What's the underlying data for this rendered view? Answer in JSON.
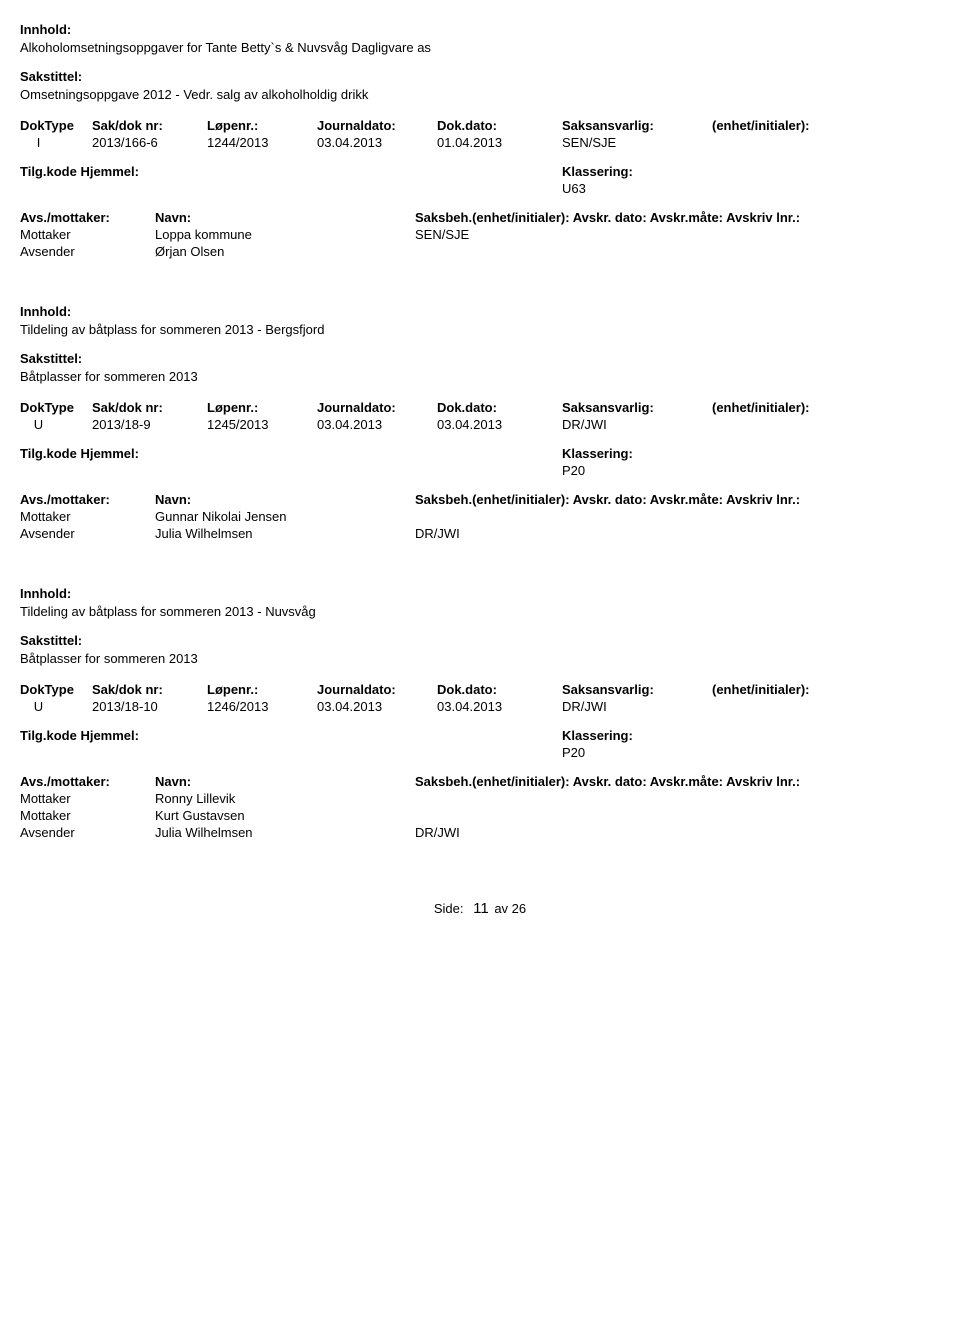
{
  "labels": {
    "innhold": "Innhold:",
    "sakstittel": "Sakstittel:",
    "doktype": "DokType",
    "saknr": "Sak/dok nr:",
    "lopenr": "Løpenr.:",
    "journaldato": "Journaldato:",
    "dokdato": "Dok.dato:",
    "saksansvarlig": "Saksansvarlig:",
    "enhet": "(enhet/initialer):",
    "tilgkode": "Tilg.kode",
    "hjemmel": "Hjemmel:",
    "klassering": "Klassering:",
    "avsmottaker": "Avs./mottaker:",
    "navn": "Navn:",
    "saksbeh_line": "Saksbeh.(enhet/initialer): Avskr. dato:  Avskr.måte:  Avskriv lnr.:",
    "mottaker": "Mottaker",
    "avsender": "Avsender",
    "side": "Side:",
    "page_num": "11",
    "page_rest": "av  26"
  },
  "records": [
    {
      "innhold": "Alkoholomsetningsoppgaver for Tante Betty`s & Nuvsvåg Dagligvare as",
      "sakstittel": "Omsetningsoppgave 2012 - Vedr. salg  av alkoholholdig drikk",
      "doktype": "I",
      "saknr": "2013/166-6",
      "lopenr": "1244/2013",
      "journaldato": "03.04.2013",
      "dokdato": "01.04.2013",
      "saksansvarlig": "SEN/SJE",
      "klassering": "U63",
      "parties": [
        {
          "role": "Mottaker",
          "name": "Loppa kommune",
          "saksbeh": "SEN/SJE"
        },
        {
          "role": "Avsender",
          "name": "Ørjan Olsen",
          "saksbeh": ""
        }
      ]
    },
    {
      "innhold": "Tildeling av båtplass for sommeren 2013 - Bergsfjord",
      "sakstittel": "Båtplasser for sommeren 2013",
      "doktype": "U",
      "saknr": "2013/18-9",
      "lopenr": "1245/2013",
      "journaldato": "03.04.2013",
      "dokdato": "03.04.2013",
      "saksansvarlig": "DR/JWI",
      "klassering": "P20",
      "parties": [
        {
          "role": "Mottaker",
          "name": "Gunnar Nikolai Jensen",
          "saksbeh": ""
        },
        {
          "role": "Avsender",
          "name": "Julia Wilhelmsen",
          "saksbeh": "DR/JWI"
        }
      ]
    },
    {
      "innhold": "Tildeling av båtplass for sommeren 2013 - Nuvsvåg",
      "sakstittel": "Båtplasser for sommeren 2013",
      "doktype": "U",
      "saknr": "2013/18-10",
      "lopenr": "1246/2013",
      "journaldato": "03.04.2013",
      "dokdato": "03.04.2013",
      "saksansvarlig": "DR/JWI",
      "klassering": "P20",
      "parties": [
        {
          "role": "Mottaker",
          "name": "Ronny Lillevik",
          "saksbeh": ""
        },
        {
          "role": "Mottaker",
          "name": "Kurt Gustavsen",
          "saksbeh": ""
        },
        {
          "role": "Avsender",
          "name": "Julia Wilhelmsen",
          "saksbeh": "DR/JWI"
        }
      ]
    }
  ]
}
